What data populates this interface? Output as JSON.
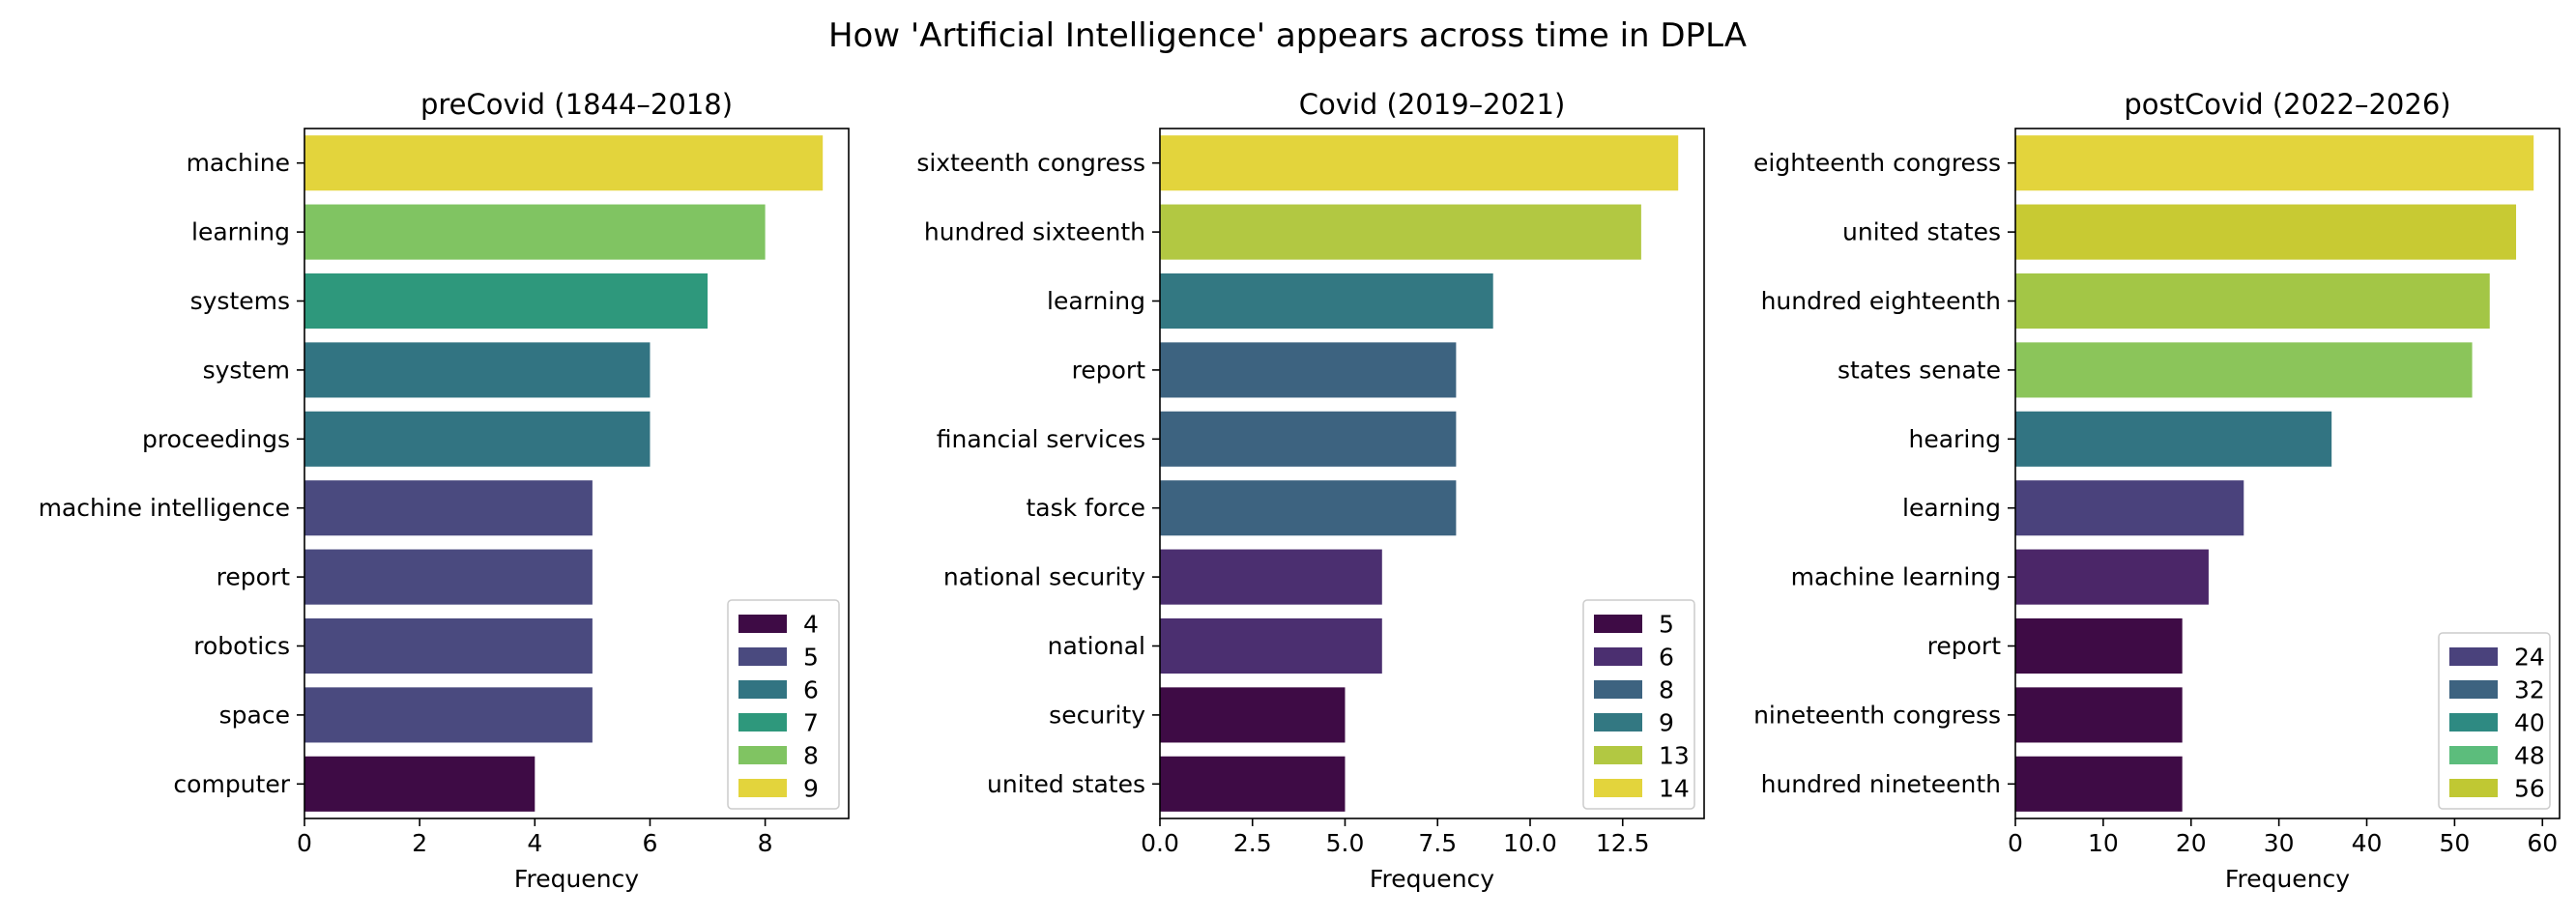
{
  "suptitle": "How 'Artificial Intelligence' appears across time in DPLA",
  "chart_data": [
    {
      "type": "bar",
      "orientation": "horizontal",
      "title": "preCovid (1844–2018)",
      "xlabel": "Frequency",
      "ylabel": "",
      "xlim": [
        0,
        9.45
      ],
      "xticks": [
        0,
        2,
        4,
        6,
        8
      ],
      "xtick_labels": [
        "0",
        "2",
        "4",
        "6",
        "8"
      ],
      "categories": [
        "machine",
        "learning",
        "systems",
        "system",
        "proceedings",
        "machine intelligence",
        "report",
        "robotics",
        "space",
        "computer"
      ],
      "values": [
        9,
        8,
        7,
        6,
        6,
        5,
        5,
        5,
        5,
        4
      ],
      "bar_colors": [
        "#e3d43c",
        "#80c462",
        "#2e987c",
        "#327482",
        "#327482",
        "#4a4a7f",
        "#4a4a7f",
        "#4a4a7f",
        "#4a4a7f",
        "#3e0b45"
      ],
      "legend": {
        "position": "lower right",
        "entries": [
          {
            "label": "4",
            "color": "#3e0b45"
          },
          {
            "label": "5",
            "color": "#4a4a7f"
          },
          {
            "label": "6",
            "color": "#327482"
          },
          {
            "label": "7",
            "color": "#2e987c"
          },
          {
            "label": "8",
            "color": "#80c462"
          },
          {
            "label": "9",
            "color": "#e3d43c"
          }
        ]
      }
    },
    {
      "type": "bar",
      "orientation": "horizontal",
      "title": "Covid (2019–2021)",
      "xlabel": "Frequency",
      "ylabel": "",
      "xlim": [
        0,
        14.7
      ],
      "xticks": [
        0,
        2.5,
        5,
        7.5,
        10,
        12.5
      ],
      "xtick_labels": [
        "0.0",
        "2.5",
        "5.0",
        "7.5",
        "10.0",
        "12.5"
      ],
      "categories": [
        "sixteenth congress",
        "hundred sixteenth",
        "learning",
        "report",
        "financial services",
        "task force",
        "national security",
        "national",
        "security",
        "united states"
      ],
      "values": [
        14,
        13,
        9,
        8,
        8,
        8,
        6,
        6,
        5,
        5
      ],
      "bar_colors": [
        "#e3d43c",
        "#b2c842",
        "#337882",
        "#3d6380",
        "#3d6380",
        "#3d6380",
        "#4b2f70",
        "#4b2f70",
        "#3e0b45",
        "#3e0b45"
      ],
      "legend": {
        "position": "lower right",
        "entries": [
          {
            "label": "5",
            "color": "#3e0b45"
          },
          {
            "label": "6",
            "color": "#4b2f70"
          },
          {
            "label": "8",
            "color": "#3d6380"
          },
          {
            "label": "9",
            "color": "#337882"
          },
          {
            "label": "13",
            "color": "#b2c842"
          },
          {
            "label": "14",
            "color": "#e3d43c"
          }
        ]
      }
    },
    {
      "type": "bar",
      "orientation": "horizontal",
      "title": "postCovid (2022–2026)",
      "xlabel": "Frequency",
      "ylabel": "",
      "xlim": [
        0,
        61.95
      ],
      "xticks": [
        0,
        10,
        20,
        30,
        40,
        50,
        60
      ],
      "xtick_labels": [
        "0",
        "10",
        "20",
        "30",
        "40",
        "50",
        "60"
      ],
      "categories": [
        "eighteenth congress",
        "united states",
        "hundred eighteenth",
        "states senate",
        "hearing",
        "learning",
        "machine learning",
        "report",
        "nineteenth congress",
        "hundred nineteenth"
      ],
      "values": [
        59,
        57,
        54,
        52,
        36,
        26,
        22,
        19,
        19,
        19
      ],
      "bar_colors": [
        "#e3d43c",
        "#c8ca33",
        "#a3c646",
        "#8bc55a",
        "#327482",
        "#4a427c",
        "#4b2668",
        "#3e0b45",
        "#3e0b45",
        "#3e0b45"
      ],
      "legend": {
        "position": "lower right",
        "entries": [
          {
            "label": "24",
            "color": "#4a427c"
          },
          {
            "label": "32",
            "color": "#3d6380"
          },
          {
            "label": "40",
            "color": "#2e8a82"
          },
          {
            "label": "48",
            "color": "#5cbd7c"
          },
          {
            "label": "56",
            "color": "#c0c833"
          }
        ]
      }
    }
  ]
}
